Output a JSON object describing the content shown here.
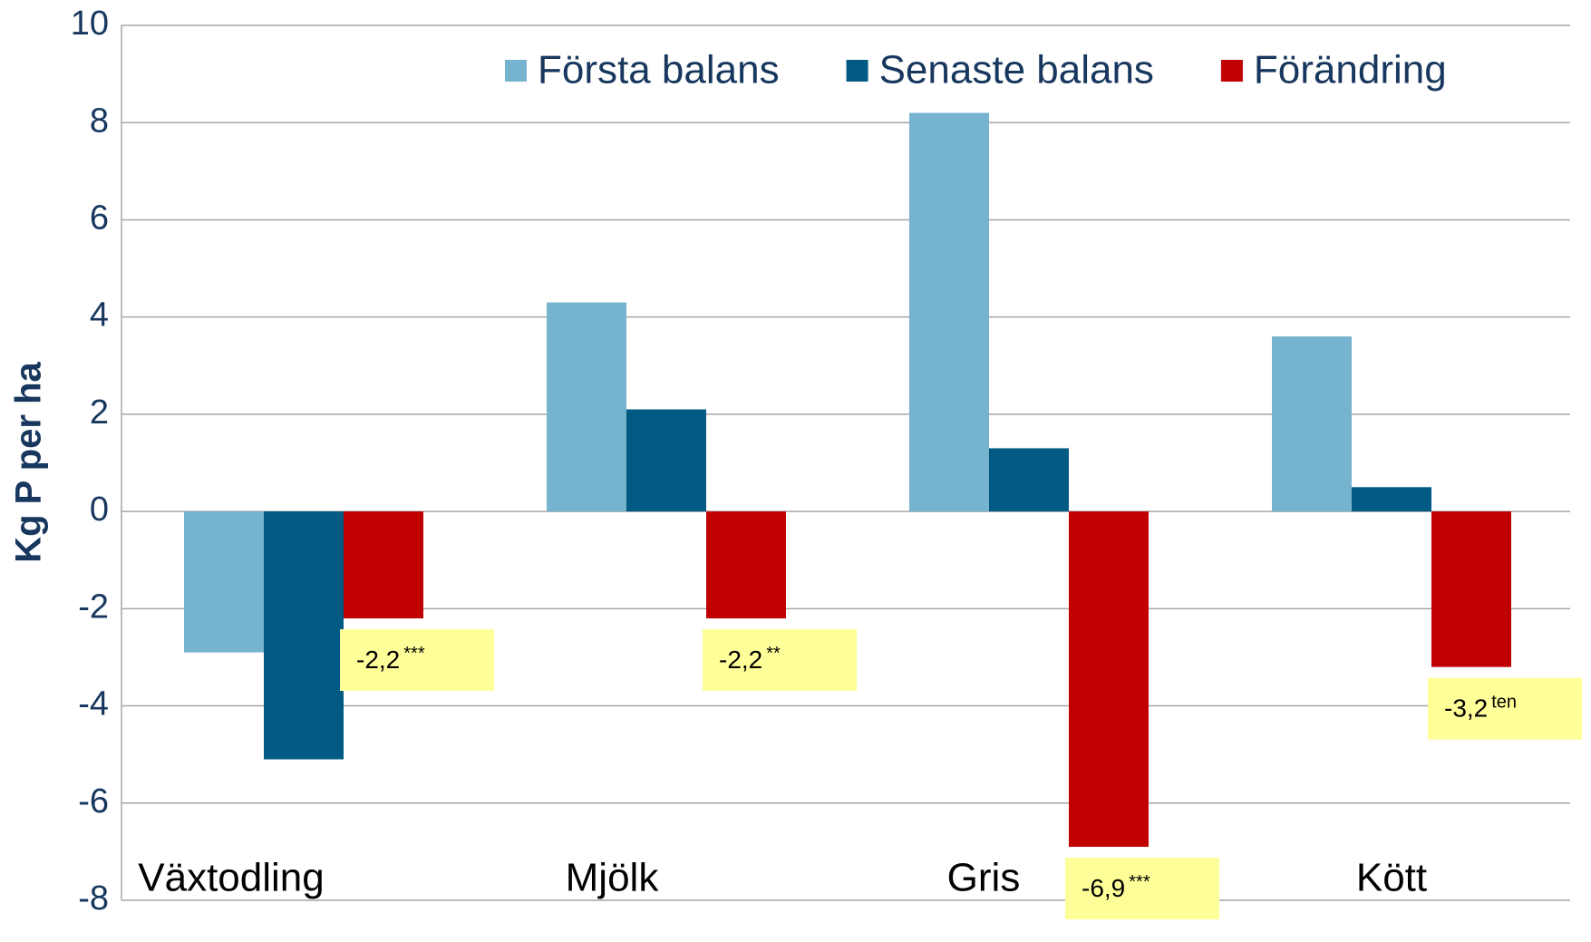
{
  "chart_data": {
    "type": "bar",
    "y_label": "Kg P per ha",
    "categories": [
      "Växtodling",
      "Mjölk",
      "Gris",
      "Kött"
    ],
    "series": [
      {
        "name": "Första balans",
        "color": "#75b3ce",
        "values": [
          -2.9,
          4.3,
          8.2,
          3.6
        ]
      },
      {
        "name": "Senaste balans",
        "color": "#005a84",
        "values": [
          -5.1,
          2.1,
          1.3,
          0.5
        ]
      },
      {
        "name": "Förändring",
        "color": "#c00000",
        "values": [
          -2.2,
          -2.2,
          -6.9,
          -3.2
        ],
        "value_labels": [
          "-2,2",
          "-2,2",
          "-6,9",
          "-3,2"
        ],
        "significance": [
          "***",
          "**",
          "***",
          "ten"
        ]
      }
    ],
    "ylim": [
      -8,
      10
    ],
    "yticks": [
      -8,
      -6,
      -4,
      -2,
      0,
      2,
      4,
      6,
      8,
      10
    ],
    "grid": true,
    "legend": "top"
  }
}
